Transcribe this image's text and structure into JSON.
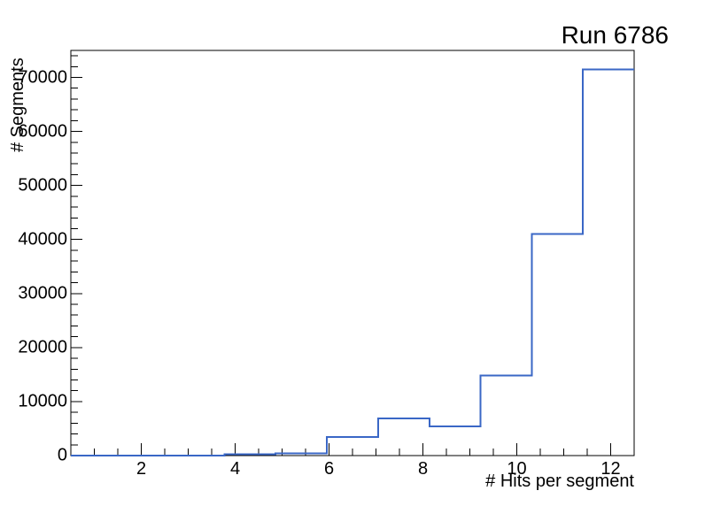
{
  "chart_data": {
    "type": "line",
    "style": "step-histogram-outline",
    "title": "Run 6786",
    "xlabel": "# Hits per segment",
    "ylabel": "# Segments",
    "xlim": [
      0.5,
      12.5
    ],
    "ylim": [
      0,
      75000
    ],
    "bin_edges": [
      0.5,
      1.59,
      2.68,
      3.77,
      4.86,
      5.95,
      7.05,
      8.14,
      9.23,
      10.32,
      11.41,
      12.5
    ],
    "counts": [
      0,
      0,
      0,
      250,
      400,
      3400,
      6900,
      5400,
      14800,
      41000,
      71500
    ],
    "x_major_ticks": [
      2,
      4,
      6,
      8,
      10,
      12
    ],
    "x_minor_step": 0.5,
    "y_major_ticks": [
      0,
      10000,
      20000,
      30000,
      40000,
      50000,
      60000,
      70000
    ],
    "y_minor_step": 2000,
    "line_color": "#3a67c6",
    "frame_color": "#000000",
    "grid": false,
    "legend_position": "none"
  }
}
